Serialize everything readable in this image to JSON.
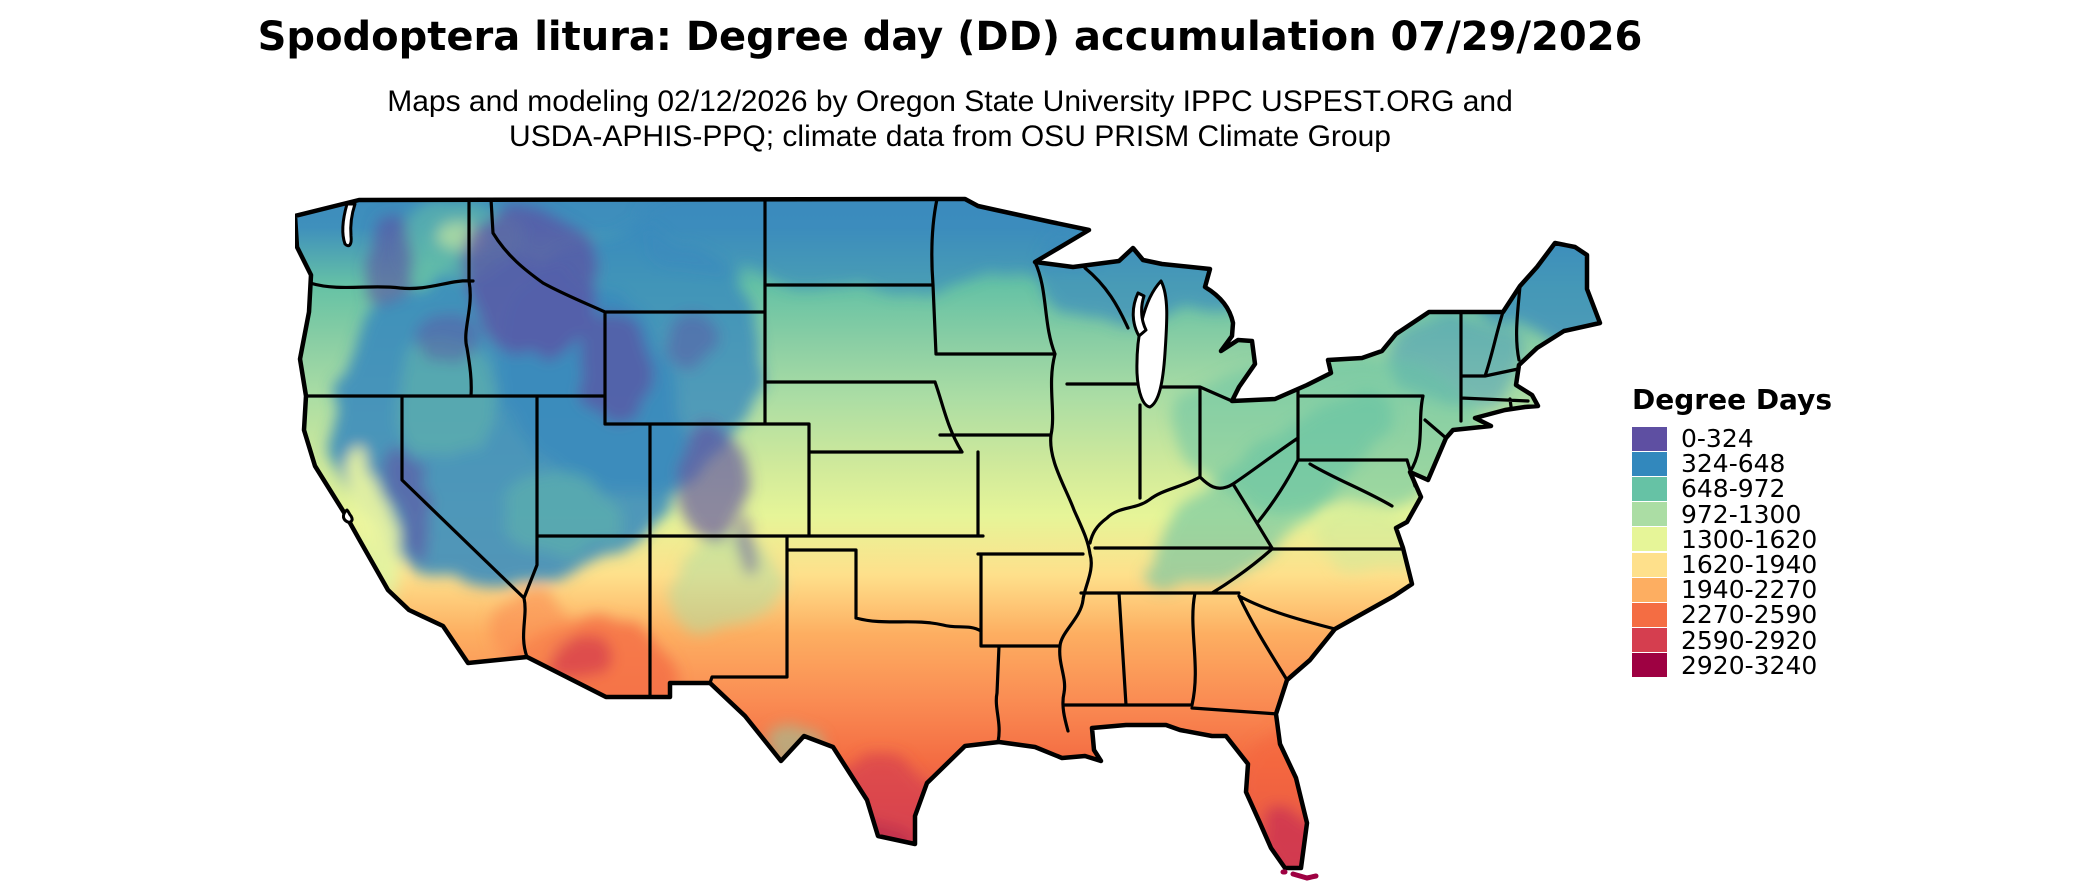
{
  "figure": {
    "title": "Spodoptera litura: Degree day (DD) accumulation 07/29/2026",
    "subtitle_line1": "Maps and modeling 02/12/2026 by Oregon State University IPPC USPEST.ORG and",
    "subtitle_line2": "USDA-APHIS-PPQ; climate data from OSU PRISM Climate Group"
  },
  "legend": {
    "title": "Degree Days",
    "entries": [
      {
        "label": "0-324",
        "color": "#5e4fa2"
      },
      {
        "label": "324-648",
        "color": "#3288bd"
      },
      {
        "label": "648-972",
        "color": "#66c2a5"
      },
      {
        "label": "972-1300",
        "color": "#abdda4"
      },
      {
        "label": "1300-1620",
        "color": "#e6f598"
      },
      {
        "label": "1620-1940",
        "color": "#fee08b"
      },
      {
        "label": "1940-2270",
        "color": "#fdae61"
      },
      {
        "label": "2270-2590",
        "color": "#f46d43"
      },
      {
        "label": "2590-2920",
        "color": "#d53e4f"
      },
      {
        "label": "2920-3240",
        "color": "#9e0142"
      }
    ]
  },
  "map": {
    "region": "Continental United States",
    "style": "raster choropleth with black state boundary lines",
    "no_data_color": "#ffffff",
    "boundary_color": "#000000"
  },
  "chart_data": {
    "type": "heatmap",
    "subtype": "geographic choropleth raster map",
    "title": "Spodoptera litura: Degree day (DD) accumulation 07/29/2026",
    "variable": "Accumulated degree days (DD) through 07/29/2026",
    "legend_title": "Degree Days",
    "legend_position": "right",
    "bins": [
      {
        "range": "0-324",
        "color": "#5e4fa2"
      },
      {
        "range": "324-648",
        "color": "#3288bd"
      },
      {
        "range": "648-972",
        "color": "#66c2a5"
      },
      {
        "range": "972-1300",
        "color": "#abdda4"
      },
      {
        "range": "1300-1620",
        "color": "#e6f598"
      },
      {
        "range": "1620-1940",
        "color": "#fee08b"
      },
      {
        "range": "1940-2270",
        "color": "#fdae61"
      },
      {
        "range": "2270-2590",
        "color": "#f46d43"
      },
      {
        "range": "2590-2920",
        "color": "#d53e4f"
      },
      {
        "range": "2920-3240",
        "color": "#9e0142"
      }
    ],
    "spatial_pattern": [
      {
        "area": "High elevations: northern Rockies (ID/MT/WY), Colorado Rockies, Sierra Nevada, Cascades",
        "value": "0-324"
      },
      {
        "area": "Northern tier: WA, MT, ND, northern MN/WI/MI, Maine, Great Basin (NV/UT/OR)",
        "value": "324-648"
      },
      {
        "area": "SD, IA, WI, MI, New England, PA/OH, Appalachians",
        "value": "648-1300"
      },
      {
        "area": "NE, KS, MO, IL/IN, KY, VA, NC, OK, California Central Valley",
        "value": "1300-1940"
      },
      {
        "area": "TX, LA, MS, AL, GA, SC, northern FL, low deserts of NM",
        "value": "1940-2590"
      },
      {
        "area": "South Texas, southern Florida, SW Arizona / SE California deserts",
        "value": "2590-3240"
      }
    ],
    "no_data": "Great Lakes, oceans and areas outside the US shown white"
  }
}
